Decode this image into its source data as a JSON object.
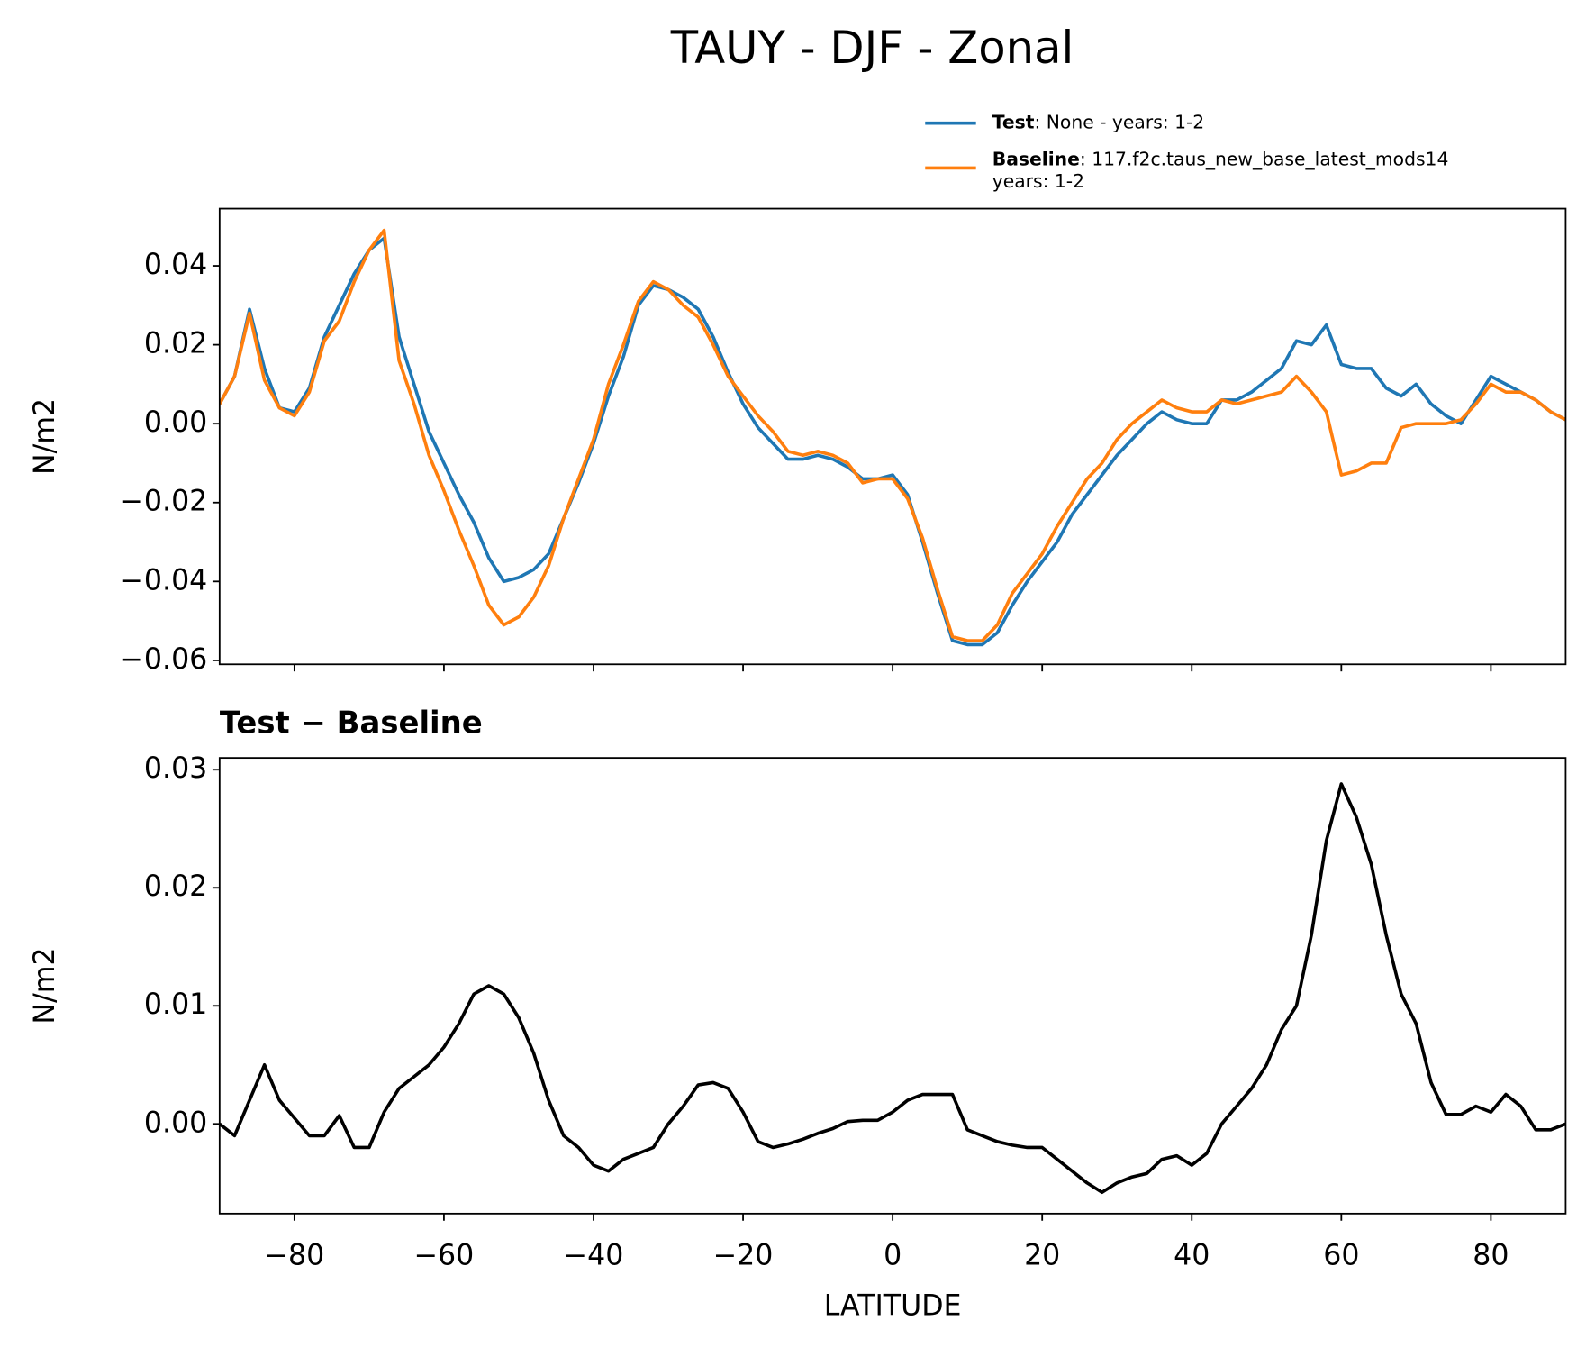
{
  "chart_data": [
    {
      "type": "line",
      "title": "TAUY - DJF - Zonal",
      "ylabel": "N/m2",
      "x": [
        -90,
        -88,
        -86,
        -84,
        -82,
        -80,
        -78,
        -76,
        -74,
        -72,
        -70,
        -68,
        -66,
        -64,
        -62,
        -60,
        -58,
        -56,
        -54,
        -52,
        -50,
        -48,
        -46,
        -44,
        -42,
        -40,
        -38,
        -36,
        -34,
        -32,
        -30,
        -28,
        -26,
        -24,
        -22,
        -20,
        -18,
        -16,
        -14,
        -12,
        -10,
        -8,
        -6,
        -4,
        -2,
        0,
        2,
        4,
        6,
        8,
        10,
        12,
        14,
        16,
        18,
        20,
        22,
        24,
        26,
        28,
        30,
        32,
        34,
        36,
        38,
        40,
        42,
        44,
        46,
        48,
        50,
        52,
        54,
        56,
        58,
        60,
        62,
        64,
        66,
        68,
        70,
        72,
        74,
        76,
        78,
        80,
        82,
        84,
        86,
        88,
        90
      ],
      "series": [
        {
          "name": "Test",
          "label_lines": [
            ": None - years: 1-2"
          ],
          "color": "#1f77b4",
          "values": [
            0.005,
            0.012,
            0.029,
            0.014,
            0.004,
            0.003,
            0.009,
            0.022,
            0.03,
            0.038,
            0.044,
            0.047,
            0.022,
            0.01,
            -0.002,
            -0.01,
            -0.018,
            -0.025,
            -0.034,
            -0.04,
            -0.039,
            -0.037,
            -0.033,
            -0.024,
            -0.015,
            -0.005,
            0.007,
            0.017,
            0.03,
            0.035,
            0.034,
            0.032,
            0.029,
            0.022,
            0.013,
            0.005,
            -0.001,
            -0.005,
            -0.009,
            -0.009,
            -0.008,
            -0.009,
            -0.011,
            -0.014,
            -0.014,
            -0.013,
            -0.018,
            -0.03,
            -0.043,
            -0.055,
            -0.056,
            -0.056,
            -0.053,
            -0.046,
            -0.04,
            -0.035,
            -0.03,
            -0.023,
            -0.018,
            -0.013,
            -0.008,
            -0.004,
            0.0,
            0.003,
            0.001,
            0.0,
            0.0,
            0.006,
            0.006,
            0.008,
            0.011,
            0.014,
            0.021,
            0.02,
            0.025,
            0.015,
            0.014,
            0.014,
            0.009,
            0.007,
            0.01,
            0.005,
            0.002,
            0.0,
            0.006,
            0.012,
            0.01,
            0.008,
            0.006,
            0.003,
            0.001
          ]
        },
        {
          "name": "Baseline",
          "label_lines": [
            ": 117.f2c.taus_new_base_latest_mods14",
            "years: 1-2"
          ],
          "color": "#ff7f0e",
          "values": [
            0.005,
            0.012,
            0.028,
            0.011,
            0.004,
            0.002,
            0.008,
            0.021,
            0.026,
            0.036,
            0.044,
            0.049,
            0.016,
            0.005,
            -0.008,
            -0.017,
            -0.027,
            -0.036,
            -0.046,
            -0.051,
            -0.049,
            -0.044,
            -0.036,
            -0.024,
            -0.014,
            -0.004,
            0.01,
            0.02,
            0.031,
            0.036,
            0.034,
            0.03,
            0.027,
            0.02,
            0.012,
            0.007,
            0.002,
            -0.002,
            -0.007,
            -0.008,
            -0.007,
            -0.008,
            -0.01,
            -0.015,
            -0.014,
            -0.014,
            -0.019,
            -0.029,
            -0.042,
            -0.054,
            -0.055,
            -0.055,
            -0.051,
            -0.043,
            -0.038,
            -0.033,
            -0.026,
            -0.02,
            -0.014,
            -0.01,
            -0.004,
            0.0,
            0.003,
            0.006,
            0.004,
            0.003,
            0.003,
            0.006,
            0.005,
            0.006,
            0.007,
            0.008,
            0.012,
            0.008,
            0.003,
            -0.013,
            -0.012,
            -0.01,
            -0.01,
            -0.001,
            0.0,
            0.0,
            0.0,
            0.001,
            0.005,
            0.01,
            0.008,
            0.008,
            0.006,
            0.003,
            0.001
          ]
        }
      ],
      "xlim": [
        -90,
        90
      ],
      "xticks": [
        {
          "value": -80,
          "label": "−80"
        },
        {
          "value": -60,
          "label": "−60"
        },
        {
          "value": -40,
          "label": "−40"
        },
        {
          "value": -20,
          "label": "−20"
        },
        0,
        20,
        40,
        60,
        80
      ],
      "ylim": [
        -0.061,
        0.0545
      ],
      "yticks": [
        {
          "value": 0.04,
          "label": "0.04"
        },
        {
          "value": 0.02,
          "label": "0.02"
        },
        {
          "value": 0,
          "label": "0.00"
        },
        {
          "value": -0.02,
          "label": "−0.02"
        },
        {
          "value": -0.04,
          "label": "−0.04"
        },
        {
          "value": -0.06,
          "label": "−0.06"
        }
      ]
    },
    {
      "type": "line",
      "title": "Test − Baseline",
      "ylabel": "N/m2",
      "xlabel": "LATITUDE",
      "x": [
        -90,
        -88,
        -86,
        -84,
        -82,
        -80,
        -78,
        -76,
        -74,
        -72,
        -70,
        -68,
        -66,
        -64,
        -62,
        -60,
        -58,
        -56,
        -54,
        -52,
        -50,
        -48,
        -46,
        -44,
        -42,
        -40,
        -38,
        -36,
        -34,
        -32,
        -30,
        -28,
        -26,
        -24,
        -22,
        -20,
        -18,
        -16,
        -14,
        -12,
        -10,
        -8,
        -6,
        -4,
        -2,
        0,
        2,
        4,
        6,
        8,
        10,
        12,
        14,
        16,
        18,
        20,
        22,
        24,
        26,
        28,
        30,
        32,
        34,
        36,
        38,
        40,
        42,
        44,
        46,
        48,
        50,
        52,
        54,
        56,
        58,
        60,
        62,
        64,
        66,
        68,
        70,
        72,
        74,
        76,
        78,
        80,
        82,
        84,
        86,
        88,
        90
      ],
      "series": [
        {
          "color": "#000000",
          "values": [
            0.0,
            -0.001,
            0.002,
            0.005,
            0.002,
            0.0005,
            -0.001,
            -0.001,
            0.0007,
            -0.002,
            -0.002,
            0.001,
            0.003,
            0.004,
            0.005,
            0.0065,
            0.0085,
            0.011,
            0.0117,
            0.011,
            0.009,
            0.006,
            0.002,
            -0.001,
            -0.002,
            -0.0035,
            -0.004,
            -0.003,
            -0.0025,
            -0.002,
            0.0,
            0.0015,
            0.0033,
            0.0035,
            0.003,
            0.001,
            -0.0015,
            -0.002,
            -0.0017,
            -0.0013,
            -0.0008,
            -0.0004,
            0.0002,
            0.0003,
            0.0003,
            0.001,
            0.002,
            0.0025,
            0.0025,
            0.0025,
            -0.0005,
            -0.001,
            -0.0015,
            -0.0018,
            -0.002,
            -0.002,
            -0.003,
            -0.004,
            -0.005,
            -0.0058,
            -0.005,
            -0.0045,
            -0.0042,
            -0.003,
            -0.0027,
            -0.0035,
            -0.0025,
            0.0,
            0.0015,
            0.003,
            0.005,
            0.008,
            0.01,
            0.016,
            0.024,
            0.0288,
            0.026,
            0.022,
            0.016,
            0.011,
            0.0085,
            0.0035,
            0.0008,
            0.0008,
            0.0015,
            0.001,
            0.0025,
            0.0015,
            -0.0005,
            -0.0005,
            0.0
          ]
        }
      ],
      "xlim": [
        -90,
        90
      ],
      "xticks": [
        {
          "value": -80,
          "label": "−80"
        },
        {
          "value": -60,
          "label": "−60"
        },
        {
          "value": -40,
          "label": "−40"
        },
        {
          "value": -20,
          "label": "−20"
        },
        0,
        20,
        40,
        60,
        80
      ],
      "ylim": [
        -0.0076,
        0.031
      ],
      "yticks": [
        {
          "value": 0.03,
          "label": "0.03"
        },
        {
          "value": 0.02,
          "label": "0.02"
        },
        {
          "value": 0.01,
          "label": "0.01"
        },
        {
          "value": 0,
          "label": "0.00"
        }
      ]
    }
  ]
}
